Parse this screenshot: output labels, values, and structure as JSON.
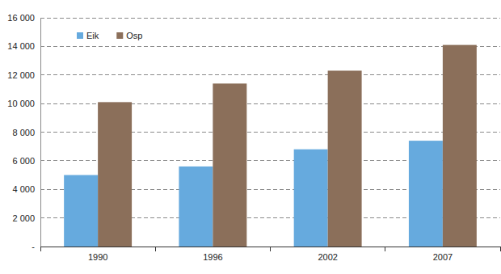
{
  "chart_data": {
    "type": "bar",
    "categories": [
      "1990",
      "1996",
      "2002",
      "2007"
    ],
    "series": [
      {
        "name": "Eik",
        "color": "#66aade",
        "values": [
          5000,
          5600,
          6800,
          7400
        ]
      },
      {
        "name": "Osp",
        "color": "#8b6f5a",
        "values": [
          10100,
          11400,
          12300,
          14100
        ]
      }
    ],
    "ylim": [
      0,
      16000
    ],
    "yticks": [
      {
        "value": 0,
        "label": "-"
      },
      {
        "value": 2000,
        "label": "2 000"
      },
      {
        "value": 4000,
        "label": "4 000"
      },
      {
        "value": 6000,
        "label": "6 000"
      },
      {
        "value": 8000,
        "label": "8 000"
      },
      {
        "value": 10000,
        "label": "10 000"
      },
      {
        "value": 12000,
        "label": "12 000"
      },
      {
        "value": 14000,
        "label": "14 000"
      },
      {
        "value": 16000,
        "label": "16 000"
      }
    ],
    "grid": true,
    "legend": "top-left"
  }
}
